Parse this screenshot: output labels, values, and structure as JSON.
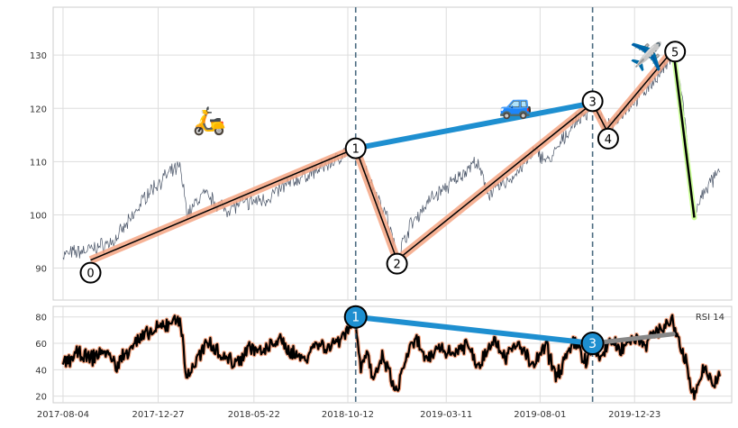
{
  "chart_data": [
    {
      "type": "line",
      "panel": "price",
      "xlim": [
        "2017-07-20",
        "2020-05-19"
      ],
      "ylim": [
        84,
        139
      ],
      "y_ticks": [
        90,
        100,
        110,
        120,
        130
      ],
      "grid": true,
      "series": [
        {
          "color": "#4a5568",
          "x": [
            "2017-08-04",
            "2017-09-15",
            "2017-10-20",
            "2017-11-15",
            "2017-12-10",
            "2018-01-05",
            "2018-01-29",
            "2018-02-10",
            "2018-03-05",
            "2018-04-10",
            "2018-05-01",
            "2018-06-10",
            "2018-07-15",
            "2018-08-20",
            "2018-09-20",
            "2018-10-10",
            "2018-10-24",
            "2018-11-20",
            "2018-12-10",
            "2018-12-26",
            "2019-01-15",
            "2019-02-15",
            "2019-03-20",
            "2019-04-25",
            "2019-05-15",
            "2019-06-20",
            "2019-07-25",
            "2019-08-15",
            "2019-09-20",
            "2019-10-10",
            "2019-10-20",
            "2019-11-01",
            "2019-11-10",
            "2019-12-01",
            "2020-01-05",
            "2020-02-10",
            "2020-02-20",
            "2020-03-05",
            "2020-03-23",
            "2020-04-10",
            "2020-05-01"
          ],
          "y": [
            92.5,
            93.5,
            95,
            99,
            104,
            107,
            109,
            100,
            104,
            101,
            102,
            103,
            106,
            108,
            110,
            112,
            113,
            105,
            100,
            92,
            98,
            103,
            106,
            110,
            104,
            107,
            112,
            110,
            117,
            119,
            121,
            118,
            116,
            119,
            123,
            128,
            131,
            122,
            100,
            105,
            108
          ]
        }
      ],
      "wave_points": [
        {
          "label": "0",
          "x": "2017-09-15",
          "y": 91.5
        },
        {
          "label": "1",
          "x": "2018-10-24",
          "y": 112.5
        },
        {
          "label": "2",
          "x": "2018-12-26",
          "y": 91.5
        },
        {
          "label": "3",
          "x": "2019-10-20",
          "y": 121
        },
        {
          "label": "4",
          "x": "2019-11-10",
          "y": 116
        },
        {
          "label": "5",
          "x": "2020-02-20",
          "y": 131
        },
        {
          "label": "",
          "x": "2020-03-23",
          "y": 99.5
        }
      ],
      "trend_line": {
        "from": "1",
        "to": "3",
        "color": "#1e8fd0"
      },
      "crash_line": {
        "from": "5",
        "to_x": "2020-03-23",
        "to_y": 99.5,
        "color": "#ccff99"
      },
      "wave_line_color": "#000000",
      "wave_glow_color": "#f4a582",
      "icons": [
        {
          "name": "scooter-icon",
          "glyph": "🛵",
          "x": "2018-03-15",
          "y": 116
        },
        {
          "name": "car-icon",
          "glyph": "🚙",
          "x": "2019-06-25",
          "y": 119
        },
        {
          "name": "airplane-icon",
          "glyph": "✈️",
          "x": "2020-01-10",
          "y": 128
        }
      ],
      "vlines": [
        "2018-10-24",
        "2019-10-20"
      ],
      "vline_color": "#4a6a80"
    },
    {
      "type": "line",
      "panel": "rsi",
      "legend": "RSI 14",
      "legend_position": "top-right",
      "xlim": [
        "2017-07-20",
        "2020-05-19"
      ],
      "ylim": [
        15,
        88
      ],
      "y_ticks": [
        20,
        40,
        60,
        80
      ],
      "grid": true,
      "x_ticks": [
        "2017-08-04",
        "2017-12-27",
        "2018-05-22",
        "2018-10-12",
        "2019-03-11",
        "2019-08-01",
        "2019-12-23"
      ],
      "series": [
        {
          "name": "RSI 14",
          "color": "#000000",
          "x": [
            "2017-08-04",
            "2017-08-25",
            "2017-09-15",
            "2017-10-05",
            "2017-10-25",
            "2017-11-15",
            "2017-12-05",
            "2017-12-25",
            "2018-01-15",
            "2018-01-29",
            "2018-02-08",
            "2018-02-25",
            "2018-03-15",
            "2018-04-05",
            "2018-04-25",
            "2018-05-15",
            "2018-06-05",
            "2018-06-25",
            "2018-07-15",
            "2018-08-05",
            "2018-08-25",
            "2018-09-15",
            "2018-10-05",
            "2018-10-24",
            "2018-11-01",
            "2018-11-10",
            "2018-11-20",
            "2018-12-05",
            "2018-12-15",
            "2018-12-26",
            "2019-01-10",
            "2019-01-25",
            "2019-02-10",
            "2019-02-28",
            "2019-03-20",
            "2019-04-10",
            "2019-04-30",
            "2019-05-20",
            "2019-06-10",
            "2019-06-30",
            "2019-07-20",
            "2019-08-10",
            "2019-08-25",
            "2019-09-10",
            "2019-09-25",
            "2019-10-10",
            "2019-10-20",
            "2019-11-01",
            "2019-11-15",
            "2019-12-01",
            "2019-12-20",
            "2020-01-10",
            "2020-01-30",
            "2020-02-20",
            "2020-03-01",
            "2020-03-10",
            "2020-03-23",
            "2020-04-05",
            "2020-04-20",
            "2020-05-01"
          ],
          "y": [
            45,
            52,
            48,
            55,
            43,
            58,
            65,
            70,
            76,
            80,
            34,
            48,
            62,
            50,
            45,
            58,
            52,
            63,
            55,
            48,
            60,
            57,
            67,
            78,
            40,
            55,
            30,
            50,
            35,
            22,
            52,
            62,
            45,
            58,
            52,
            60,
            43,
            64,
            50,
            60,
            42,
            58,
            35,
            50,
            62,
            45,
            57,
            48,
            62,
            55,
            65,
            60,
            72,
            75,
            60,
            45,
            20,
            40,
            30,
            35
          ]
        }
      ],
      "markers": [
        {
          "label": "1",
          "x": "2018-10-24",
          "y": 80
        },
        {
          "label": "3",
          "x": "2019-10-20",
          "y": 60
        }
      ],
      "divergence_line": {
        "from": "1",
        "to": "3",
        "color": "#1e8fd0"
      },
      "gray_line": {
        "from_x": "2019-10-20",
        "from_y": 60,
        "to_x": "2020-02-20",
        "to_y": 67,
        "color": "#888888"
      },
      "vlines": [
        "2018-10-24",
        "2019-10-20"
      ]
    }
  ]
}
